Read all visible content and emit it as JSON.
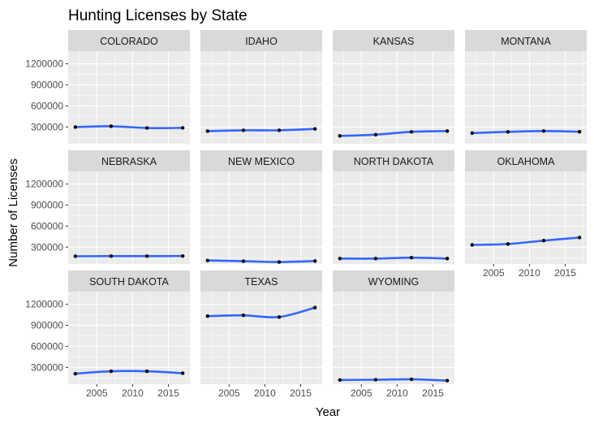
{
  "chart_data": {
    "type": "line",
    "title": "Hunting Licenses by State",
    "xlabel": "Year",
    "ylabel": "Number of Licenses",
    "xlim": [
      2001,
      2018
    ],
    "ylim": [
      60000,
      1380000
    ],
    "x_ticks": [
      2005,
      2010,
      2015
    ],
    "y_ticks": [
      300000,
      600000,
      900000,
      1200000
    ],
    "x_tick_labels": [
      "2005",
      "2010",
      "2015"
    ],
    "y_tick_labels": [
      "300000",
      "600000",
      "900000",
      "1200000"
    ],
    "grid": true,
    "layout": {
      "cols": 4,
      "rows": 3
    },
    "colors": {
      "line": "#3366ff",
      "point": "#000000",
      "panel": "#ebebeb",
      "strip": "#d9d9d9",
      "grid": "#ffffff"
    },
    "x": [
      2002,
      2007,
      2012,
      2017
    ],
    "panels": [
      {
        "name": "COLORADO",
        "values": [
          298000,
          310000,
          285000,
          287000
        ]
      },
      {
        "name": "IDAHO",
        "values": [
          240000,
          252000,
          252000,
          272000
        ]
      },
      {
        "name": "KANSAS",
        "values": [
          172000,
          190000,
          230000,
          241000
        ]
      },
      {
        "name": "MONTANA",
        "values": [
          212000,
          230000,
          242000,
          232000
        ]
      },
      {
        "name": "NEBRASKA",
        "values": [
          170000,
          172000,
          172000,
          173000
        ]
      },
      {
        "name": "NEW MEXICO",
        "values": [
          110000,
          100000,
          88000,
          102000
        ]
      },
      {
        "name": "NORTH DAKOTA",
        "values": [
          138000,
          137000,
          150000,
          137000
        ]
      },
      {
        "name": "OKLAHOMA",
        "values": [
          332000,
          345000,
          393000,
          437000
        ]
      },
      {
        "name": "SOUTH DAKOTA",
        "values": [
          210000,
          245000,
          245000,
          217000
        ]
      },
      {
        "name": "TEXAS",
        "values": [
          1030000,
          1042000,
          1018000,
          1152000
        ]
      },
      {
        "name": "WYOMING",
        "values": [
          120000,
          124000,
          130000,
          111000
        ]
      }
    ]
  }
}
